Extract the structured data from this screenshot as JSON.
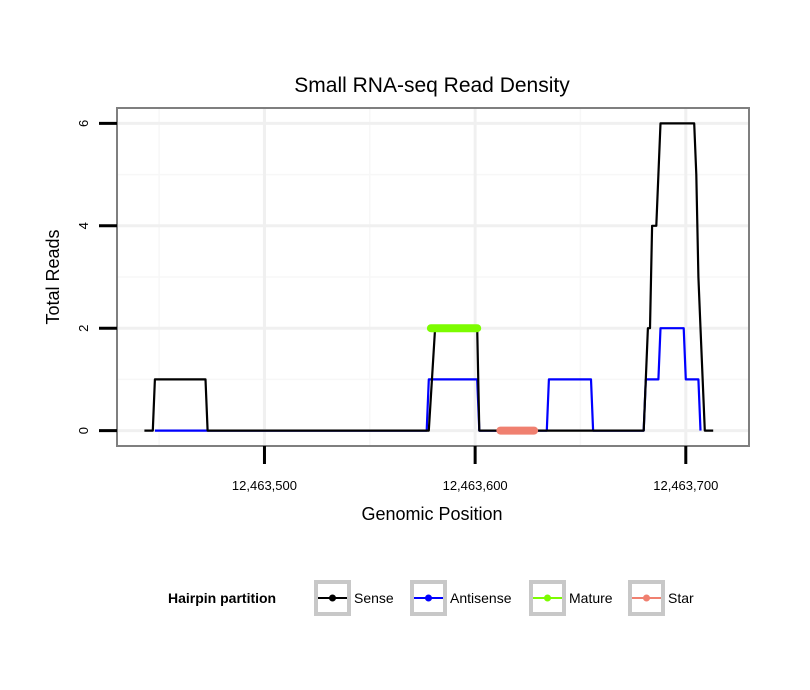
{
  "chart_data": {
    "type": "line",
    "title": "Small RNA-seq Read Density",
    "xlabel": "Genomic Position",
    "ylabel": "Total Reads",
    "xlim": [
      12463430,
      12463730
    ],
    "ylim": [
      -0.3,
      6.3
    ],
    "x_ticks": [
      12463500,
      12463600,
      12463700
    ],
    "x_tick_labels": [
      "12,463,500",
      "12,463,600",
      "12,463,700"
    ],
    "y_ticks": [
      0,
      2,
      4,
      6
    ],
    "y_tick_labels": [
      "0",
      "2",
      "4",
      "6"
    ],
    "grid": true,
    "legend": {
      "title": "Hairpin partition",
      "position": "bottom",
      "entries": [
        {
          "name": "Sense",
          "color": "#000000"
        },
        {
          "name": "Antisense",
          "color": "#0000ff"
        },
        {
          "name": "Mature",
          "color": "#7cfc00"
        },
        {
          "name": "Star",
          "color": "#f08070"
        }
      ]
    },
    "series": [
      {
        "name": "Sense",
        "color": "#000000",
        "x": [
          12463443,
          12463447,
          12463448,
          12463472,
          12463473,
          12463578,
          12463581,
          12463582,
          12463601,
          12463602,
          12463680,
          12463682,
          12463683,
          12463684,
          12463686,
          12463687,
          12463688,
          12463689,
          12463704,
          12463705,
          12463706,
          12463707,
          12463709,
          12463713
        ],
        "values": [
          0,
          0,
          1,
          1,
          0,
          0,
          2,
          2,
          2,
          0,
          0,
          2,
          2,
          4,
          4,
          5,
          6,
          6,
          6,
          5,
          3,
          2,
          0,
          0
        ]
      },
      {
        "name": "Antisense",
        "color": "#0000ff",
        "x": [
          12463448,
          12463472,
          12463473,
          12463577,
          12463578,
          12463601,
          12463602,
          12463634,
          12463635,
          12463655,
          12463656,
          12463680,
          12463681,
          12463687,
          12463688,
          12463699,
          12463700,
          12463706,
          12463707
        ],
        "values": [
          0,
          0,
          0,
          0,
          1,
          1,
          0,
          0,
          1,
          1,
          0,
          0,
          1,
          1,
          2,
          2,
          1,
          1,
          0
        ]
      },
      {
        "name": "Mature",
        "color": "#7cfc00",
        "x": [
          12463579,
          12463601
        ],
        "values": [
          2,
          2
        ]
      },
      {
        "name": "Star",
        "color": "#f08070",
        "x": [
          12463612,
          12463628
        ],
        "values": [
          0,
          0
        ]
      }
    ]
  }
}
